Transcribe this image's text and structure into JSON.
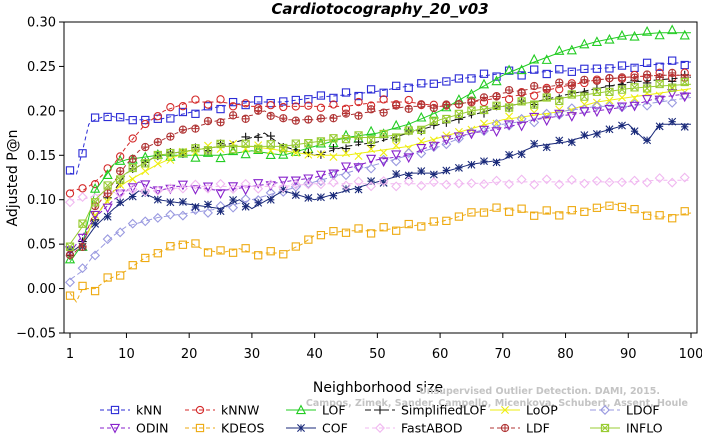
{
  "chart_data": {
    "type": "line",
    "title": "Cardiotocography_20_v03",
    "xlabel": "Neighborhood size",
    "ylabel": "Adjusted P@n",
    "xlim": [
      1,
      100
    ],
    "ylim": [
      -0.05,
      0.3
    ],
    "x_ticks": [
      1,
      10,
      20,
      30,
      40,
      50,
      60,
      70,
      80,
      90,
      100
    ],
    "y_ticks": [
      -0.05,
      0.0,
      0.05,
      0.1,
      0.15,
      0.2,
      0.25,
      0.3
    ],
    "y_tick_labels": [
      "−0.05",
      "0.00",
      "0.05",
      "0.10",
      "0.15",
      "0.20",
      "0.25",
      "0.30"
    ],
    "grid": false,
    "legend_position": "bottom",
    "watermark": [
      "Unsupervised Outlier Detection. DAMI, 2015.",
      "Campos, Zimek, Sander, Campello, Micenkova, Schubert, Assent, Houle"
    ],
    "series": [
      {
        "name": "kNN",
        "color": "#2b2bd6",
        "marker": "square",
        "dash": "4,3",
        "points": [
          [
            1,
            0.13
          ],
          [
            2,
            0.128
          ],
          [
            3,
            0.155
          ],
          [
            4,
            0.185
          ],
          [
            5,
            0.19
          ],
          [
            7,
            0.195
          ],
          [
            10,
            0.19
          ],
          [
            15,
            0.19
          ],
          [
            20,
            0.198
          ],
          [
            25,
            0.205
          ],
          [
            30,
            0.21
          ],
          [
            35,
            0.21
          ],
          [
            40,
            0.215
          ],
          [
            45,
            0.218
          ],
          [
            50,
            0.222
          ],
          [
            55,
            0.228
          ],
          [
            60,
            0.232
          ],
          [
            65,
            0.238
          ],
          [
            70,
            0.242
          ],
          [
            80,
            0.245
          ],
          [
            90,
            0.25
          ],
          [
            100,
            0.255
          ]
        ]
      },
      {
        "name": "kNNW",
        "color": "#d42a2a",
        "marker": "circle",
        "dash": "4,3",
        "points": [
          [
            1,
            0.11
          ],
          [
            2,
            0.112
          ],
          [
            3,
            0.11
          ],
          [
            5,
            0.12
          ],
          [
            8,
            0.14
          ],
          [
            10,
            0.16
          ],
          [
            13,
            0.185
          ],
          [
            16,
            0.2
          ],
          [
            20,
            0.21
          ],
          [
            25,
            0.21
          ],
          [
            30,
            0.205
          ],
          [
            35,
            0.205
          ],
          [
            40,
            0.205
          ],
          [
            45,
            0.205
          ],
          [
            50,
            0.21
          ],
          [
            55,
            0.21
          ],
          [
            60,
            0.205
          ],
          [
            65,
            0.21
          ],
          [
            70,
            0.215
          ],
          [
            75,
            0.22
          ],
          [
            80,
            0.228
          ],
          [
            85,
            0.235
          ],
          [
            90,
            0.238
          ],
          [
            95,
            0.24
          ],
          [
            100,
            0.24
          ]
        ]
      },
      {
        "name": "LOF",
        "color": "#22cc22",
        "marker": "triangle",
        "dash": "",
        "points": [
          [
            1,
            0.03
          ],
          [
            3,
            0.05
          ],
          [
            5,
            0.11
          ],
          [
            8,
            0.14
          ],
          [
            10,
            0.145
          ],
          [
            15,
            0.15
          ],
          [
            20,
            0.15
          ],
          [
            25,
            0.15
          ],
          [
            30,
            0.155
          ],
          [
            35,
            0.15
          ],
          [
            40,
            0.16
          ],
          [
            45,
            0.17
          ],
          [
            50,
            0.175
          ],
          [
            55,
            0.185
          ],
          [
            60,
            0.2
          ],
          [
            65,
            0.22
          ],
          [
            70,
            0.24
          ],
          [
            75,
            0.255
          ],
          [
            80,
            0.268
          ],
          [
            85,
            0.278
          ],
          [
            90,
            0.285
          ],
          [
            95,
            0.288
          ],
          [
            100,
            0.288
          ]
        ]
      },
      {
        "name": "SimplifiedLOF",
        "color": "#111111",
        "marker": "plus",
        "dash": "6,3",
        "points": [
          [
            1,
            0.04
          ],
          [
            3,
            0.05
          ],
          [
            5,
            0.08
          ],
          [
            8,
            0.11
          ],
          [
            10,
            0.13
          ],
          [
            15,
            0.15
          ],
          [
            20,
            0.155
          ],
          [
            25,
            0.16
          ],
          [
            30,
            0.17
          ],
          [
            32,
            0.175
          ],
          [
            35,
            0.16
          ],
          [
            40,
            0.15
          ],
          [
            45,
            0.16
          ],
          [
            50,
            0.165
          ],
          [
            55,
            0.175
          ],
          [
            60,
            0.185
          ],
          [
            65,
            0.195
          ],
          [
            70,
            0.205
          ],
          [
            75,
            0.21
          ],
          [
            80,
            0.218
          ],
          [
            85,
            0.225
          ],
          [
            90,
            0.232
          ],
          [
            95,
            0.235
          ],
          [
            100,
            0.238
          ]
        ]
      },
      {
        "name": "LoOP",
        "color": "#eeee11",
        "marker": "x",
        "dash": "",
        "points": [
          [
            1,
            0.04
          ],
          [
            3,
            0.05
          ],
          [
            5,
            0.08
          ],
          [
            8,
            0.11
          ],
          [
            10,
            0.12
          ],
          [
            15,
            0.14
          ],
          [
            20,
            0.155
          ],
          [
            25,
            0.16
          ],
          [
            30,
            0.16
          ],
          [
            35,
            0.155
          ],
          [
            40,
            0.15
          ],
          [
            45,
            0.15
          ],
          [
            50,
            0.155
          ],
          [
            55,
            0.16
          ],
          [
            60,
            0.17
          ],
          [
            65,
            0.18
          ],
          [
            70,
            0.19
          ],
          [
            75,
            0.195
          ],
          [
            80,
            0.2
          ],
          [
            85,
            0.21
          ],
          [
            90,
            0.215
          ],
          [
            95,
            0.22
          ],
          [
            100,
            0.225
          ]
        ]
      },
      {
        "name": "LDOF",
        "color": "#9a9ae0",
        "marker": "diamond",
        "dash": "6,3",
        "points": [
          [
            1,
            0.01
          ],
          [
            3,
            0.02
          ],
          [
            5,
            0.04
          ],
          [
            8,
            0.06
          ],
          [
            10,
            0.07
          ],
          [
            15,
            0.08
          ],
          [
            20,
            0.085
          ],
          [
            25,
            0.09
          ],
          [
            30,
            0.1
          ],
          [
            35,
            0.11
          ],
          [
            40,
            0.12
          ],
          [
            45,
            0.13
          ],
          [
            50,
            0.14
          ],
          [
            55,
            0.15
          ],
          [
            60,
            0.16
          ],
          [
            65,
            0.175
          ],
          [
            70,
            0.185
          ],
          [
            75,
            0.19
          ],
          [
            80,
            0.2
          ],
          [
            85,
            0.205
          ],
          [
            90,
            0.205
          ],
          [
            95,
            0.21
          ],
          [
            100,
            0.215
          ]
        ]
      },
      {
        "name": "ODIN",
        "color": "#8822cc",
        "marker": "triangledown",
        "dash": "4,3",
        "points": [
          [
            1,
            0.04
          ],
          [
            3,
            0.06
          ],
          [
            5,
            0.08
          ],
          [
            8,
            0.1
          ],
          [
            10,
            0.11
          ],
          [
            12,
            0.12
          ],
          [
            15,
            0.11
          ],
          [
            18,
            0.115
          ],
          [
            20,
            0.115
          ],
          [
            25,
            0.11
          ],
          [
            30,
            0.115
          ],
          [
            35,
            0.12
          ],
          [
            40,
            0.125
          ],
          [
            45,
            0.135
          ],
          [
            50,
            0.145
          ],
          [
            55,
            0.15
          ],
          [
            60,
            0.165
          ],
          [
            65,
            0.175
          ],
          [
            70,
            0.18
          ],
          [
            75,
            0.19
          ],
          [
            80,
            0.195
          ],
          [
            85,
            0.2
          ],
          [
            90,
            0.205
          ],
          [
            95,
            0.215
          ],
          [
            100,
            0.22
          ]
        ]
      },
      {
        "name": "KDEOS",
        "color": "#eeaa11",
        "marker": "square",
        "dash": "4,3",
        "points": [
          [
            1,
            -0.005
          ],
          [
            2,
            -0.015
          ],
          [
            3,
            0.0
          ],
          [
            5,
            0.0
          ],
          [
            7,
            0.01
          ],
          [
            10,
            0.02
          ],
          [
            13,
            0.035
          ],
          [
            15,
            0.04
          ],
          [
            18,
            0.05
          ],
          [
            20,
            0.052
          ],
          [
            22,
            0.045
          ],
          [
            25,
            0.04
          ],
          [
            28,
            0.045
          ],
          [
            30,
            0.04
          ],
          [
            32,
            0.04
          ],
          [
            35,
            0.04
          ],
          [
            38,
            0.05
          ],
          [
            40,
            0.06
          ],
          [
            45,
            0.065
          ],
          [
            50,
            0.065
          ],
          [
            55,
            0.07
          ],
          [
            60,
            0.075
          ],
          [
            65,
            0.085
          ],
          [
            70,
            0.09
          ],
          [
            75,
            0.085
          ],
          [
            80,
            0.085
          ],
          [
            85,
            0.09
          ],
          [
            88,
            0.095
          ],
          [
            90,
            0.09
          ],
          [
            95,
            0.08
          ],
          [
            100,
            0.085
          ]
        ]
      },
      {
        "name": "COF",
        "color": "#1a2a7a",
        "marker": "star",
        "dash": "",
        "points": [
          [
            1,
            0.04
          ],
          [
            3,
            0.05
          ],
          [
            5,
            0.07
          ],
          [
            8,
            0.09
          ],
          [
            10,
            0.1
          ],
          [
            12,
            0.11
          ],
          [
            15,
            0.1
          ],
          [
            20,
            0.095
          ],
          [
            25,
            0.09
          ],
          [
            28,
            0.1
          ],
          [
            30,
            0.09
          ],
          [
            35,
            0.11
          ],
          [
            40,
            0.1
          ],
          [
            45,
            0.11
          ],
          [
            50,
            0.12
          ],
          [
            55,
            0.13
          ],
          [
            60,
            0.13
          ],
          [
            65,
            0.14
          ],
          [
            70,
            0.145
          ],
          [
            75,
            0.16
          ],
          [
            80,
            0.165
          ],
          [
            85,
            0.175
          ],
          [
            90,
            0.185
          ],
          [
            93,
            0.165
          ],
          [
            95,
            0.185
          ],
          [
            100,
            0.185
          ]
        ]
      },
      {
        "name": "FastABOD",
        "color": "#f0b8f0",
        "marker": "diamond",
        "dash": "4,3",
        "points": [
          [
            1,
            0.1
          ],
          [
            3,
            0.1
          ],
          [
            5,
            0.105
          ],
          [
            10,
            0.11
          ],
          [
            15,
            0.11
          ],
          [
            20,
            0.115
          ],
          [
            25,
            0.115
          ],
          [
            30,
            0.115
          ],
          [
            35,
            0.115
          ],
          [
            40,
            0.118
          ],
          [
            45,
            0.118
          ],
          [
            50,
            0.118
          ],
          [
            55,
            0.118
          ],
          [
            60,
            0.118
          ],
          [
            65,
            0.118
          ],
          [
            70,
            0.12
          ],
          [
            75,
            0.12
          ],
          [
            80,
            0.12
          ],
          [
            85,
            0.12
          ],
          [
            90,
            0.12
          ],
          [
            95,
            0.122
          ],
          [
            100,
            0.122
          ]
        ]
      },
      {
        "name": "LDF",
        "color": "#b03535",
        "marker": "circleplus",
        "dash": "4,3",
        "points": [
          [
            1,
            0.035
          ],
          [
            3,
            0.05
          ],
          [
            5,
            0.09
          ],
          [
            8,
            0.12
          ],
          [
            10,
            0.14
          ],
          [
            12,
            0.155
          ],
          [
            15,
            0.165
          ],
          [
            18,
            0.175
          ],
          [
            20,
            0.18
          ],
          [
            25,
            0.19
          ],
          [
            30,
            0.195
          ],
          [
            32,
            0.2
          ],
          [
            35,
            0.19
          ],
          [
            40,
            0.19
          ],
          [
            45,
            0.195
          ],
          [
            50,
            0.2
          ],
          [
            55,
            0.205
          ],
          [
            60,
            0.205
          ],
          [
            65,
            0.21
          ],
          [
            70,
            0.22
          ],
          [
            75,
            0.225
          ],
          [
            80,
            0.23
          ],
          [
            85,
            0.235
          ],
          [
            90,
            0.238
          ],
          [
            95,
            0.24
          ],
          [
            100,
            0.24
          ]
        ]
      },
      {
        "name": "INFLO",
        "color": "#99cc33",
        "marker": "asterisk",
        "dash": "",
        "points": [
          [
            1,
            0.05
          ],
          [
            3,
            0.07
          ],
          [
            5,
            0.1
          ],
          [
            8,
            0.12
          ],
          [
            10,
            0.13
          ],
          [
            15,
            0.15
          ],
          [
            20,
            0.155
          ],
          [
            25,
            0.16
          ],
          [
            30,
            0.16
          ],
          [
            35,
            0.16
          ],
          [
            40,
            0.165
          ],
          [
            45,
            0.17
          ],
          [
            50,
            0.17
          ],
          [
            55,
            0.175
          ],
          [
            60,
            0.19
          ],
          [
            65,
            0.2
          ],
          [
            70,
            0.205
          ],
          [
            75,
            0.21
          ],
          [
            80,
            0.215
          ],
          [
            85,
            0.22
          ],
          [
            90,
            0.225
          ],
          [
            95,
            0.228
          ],
          [
            100,
            0.23
          ]
        ]
      }
    ]
  }
}
